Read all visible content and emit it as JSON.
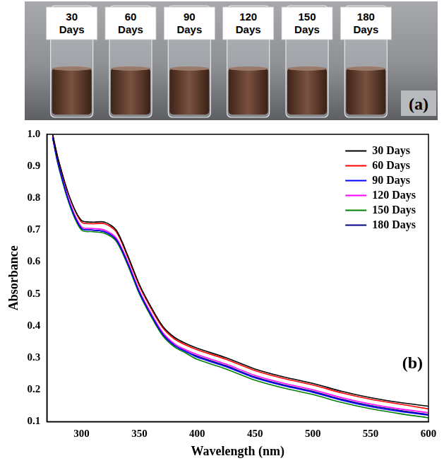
{
  "photo_panel": {
    "label": "(a)",
    "vial_labels": [
      "30 Days",
      "60 Days",
      "90 Days",
      "120 Days",
      "150 Days",
      "180 Days"
    ]
  },
  "chart_data": {
    "type": "line",
    "panel_label": "(b)",
    "xlabel": "Wavelength (nm)",
    "ylabel": "Absorbance",
    "x": [
      275,
      280,
      290,
      300,
      310,
      320,
      330,
      340,
      350,
      360,
      370,
      380,
      390,
      400,
      425,
      450,
      475,
      500,
      525,
      550,
      575,
      600
    ],
    "series": [
      {
        "name": "30 Days",
        "color": "#000000",
        "values": [
          1.0,
          0.92,
          0.8,
          0.73,
          0.725,
          0.725,
          0.7,
          0.62,
          0.53,
          0.46,
          0.4,
          0.365,
          0.345,
          0.33,
          0.3,
          0.265,
          0.24,
          0.22,
          0.195,
          0.175,
          0.16,
          0.148
        ]
      },
      {
        "name": "60 Days",
        "color": "#ff0000",
        "values": [
          1.0,
          0.92,
          0.8,
          0.725,
          0.72,
          0.72,
          0.695,
          0.615,
          0.525,
          0.455,
          0.395,
          0.36,
          0.34,
          0.325,
          0.295,
          0.26,
          0.235,
          0.215,
          0.19,
          0.17,
          0.155,
          0.14
        ]
      },
      {
        "name": "90 Days",
        "color": "#0000ff",
        "values": [
          0.99,
          0.905,
          0.78,
          0.705,
          0.7,
          0.695,
          0.67,
          0.595,
          0.505,
          0.435,
          0.375,
          0.34,
          0.32,
          0.302,
          0.272,
          0.237,
          0.212,
          0.192,
          0.167,
          0.147,
          0.132,
          0.12
        ]
      },
      {
        "name": "120 Days",
        "color": "#ff00ff",
        "values": [
          1.0,
          0.91,
          0.785,
          0.71,
          0.705,
          0.7,
          0.675,
          0.6,
          0.51,
          0.44,
          0.38,
          0.345,
          0.325,
          0.31,
          0.28,
          0.245,
          0.22,
          0.2,
          0.175,
          0.155,
          0.14,
          0.128
        ]
      },
      {
        "name": "150 Days",
        "color": "#008000",
        "values": [
          0.99,
          0.9,
          0.775,
          0.7,
          0.695,
          0.69,
          0.665,
          0.59,
          0.5,
          0.43,
          0.37,
          0.335,
          0.315,
          0.295,
          0.265,
          0.23,
          0.205,
          0.185,
          0.16,
          0.14,
          0.125,
          0.112
        ]
      },
      {
        "name": "180 Days",
        "color": "#000080",
        "values": [
          0.99,
          0.905,
          0.78,
          0.705,
          0.7,
          0.695,
          0.67,
          0.595,
          0.505,
          0.435,
          0.375,
          0.34,
          0.32,
          0.305,
          0.275,
          0.24,
          0.215,
          0.195,
          0.17,
          0.15,
          0.135,
          0.122
        ]
      }
    ],
    "xlim": [
      270,
      600
    ],
    "xticks": [
      300,
      350,
      400,
      450,
      500,
      550,
      600
    ],
    "ylim": [
      0.1,
      1.0
    ],
    "yticks": [
      0.1,
      0.2,
      0.3,
      0.4,
      0.5,
      0.6,
      0.7,
      0.8,
      0.9,
      {
        "value": 1.0,
        "label": "1.0"
      }
    ],
    "grid": false,
    "legend": "top right"
  }
}
